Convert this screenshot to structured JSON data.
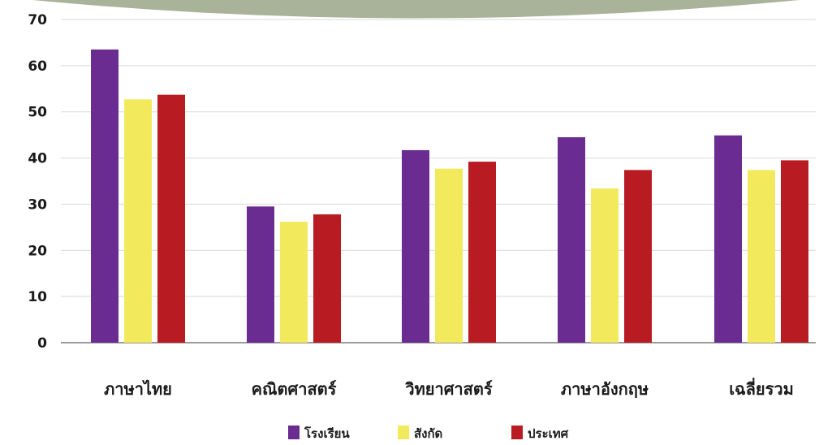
{
  "chart_data": {
    "type": "bar",
    "categories": [
      "ภาษาไทย",
      "คณิตศาสตร์",
      "วิทยาศาสตร์",
      "ภาษาอังกฤษ",
      "เฉลี่ยรวม"
    ],
    "series": [
      {
        "name": "โรงเรียน",
        "color": "#6a2c91",
        "values": [
          63.5,
          29.5,
          41.7,
          44.5,
          44.9
        ]
      },
      {
        "name": "สังกัด",
        "color": "#f2ea5c",
        "values": [
          52.7,
          26.2,
          37.7,
          33.4,
          37.4
        ]
      },
      {
        "name": "ประเทศ",
        "color": "#b81c22",
        "values": [
          53.7,
          27.8,
          39.2,
          37.4,
          39.5
        ]
      }
    ],
    "yticks": [
      0,
      10,
      20,
      30,
      40,
      50,
      60,
      70
    ],
    "ylim": [
      0,
      70
    ],
    "grid": true,
    "legend_position": "bottom",
    "colors": {
      "banner": "#a9b39a",
      "grid": "#d9d9d9",
      "axis": "#7a7a7a"
    }
  }
}
